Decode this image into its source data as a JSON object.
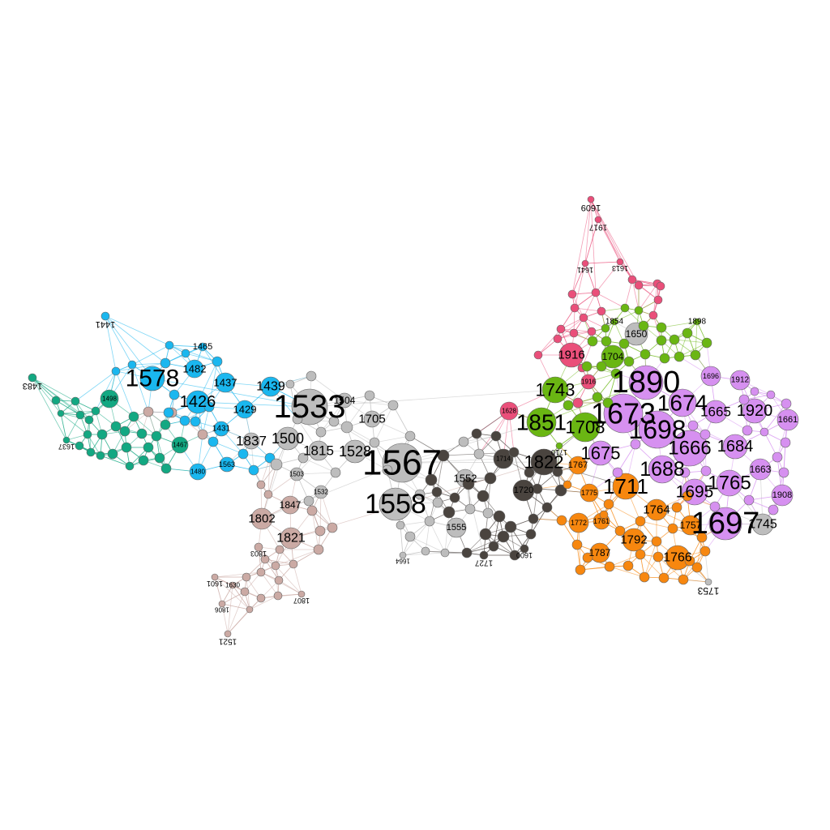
{
  "colors": {
    "cyan": "#1ab7ef",
    "teal": "#13a882",
    "gray": "#bdbdbd",
    "dark": "#4a443f",
    "rose": "#cbaaa4",
    "pink": "#ea4f7a",
    "green": "#6ab613",
    "orange": "#f7870f",
    "violet": "#d690f0"
  },
  "labels": [
    "1441",
    "1483",
    "1637",
    "1578",
    "1482",
    "1465",
    "1437",
    "1426",
    "1439",
    "1498",
    "1429",
    "1431",
    "1467",
    "1563",
    "1480",
    "1533",
    "1504",
    "1705",
    "1837",
    "1500",
    "1815",
    "1528",
    "1567",
    "1558",
    "1503",
    "1532",
    "1552",
    "1555",
    "1664",
    "1802",
    "1847",
    "1821",
    "1803",
    "1601",
    "1630",
    "1806",
    "1807",
    "1521",
    "1714",
    "1822",
    "1720",
    "1727",
    "1600",
    "1609",
    "1917",
    "1916",
    "1641",
    "1613",
    "1916",
    "1650",
    "1628",
    "1743",
    "1851",
    "1708",
    "1710",
    "1704",
    "1854",
    "1898",
    "1890",
    "1673",
    "1674",
    "1698",
    "1696",
    "1912",
    "1665",
    "1920",
    "1661",
    "1675",
    "1666",
    "1684",
    "1688",
    "1663",
    "1695",
    "1765",
    "1908",
    "1697",
    "1745",
    "1767",
    "1711",
    "1775",
    "1764",
    "1772",
    "1761",
    "1757",
    "1792",
    "1787",
    "1766",
    "1753"
  ]
}
